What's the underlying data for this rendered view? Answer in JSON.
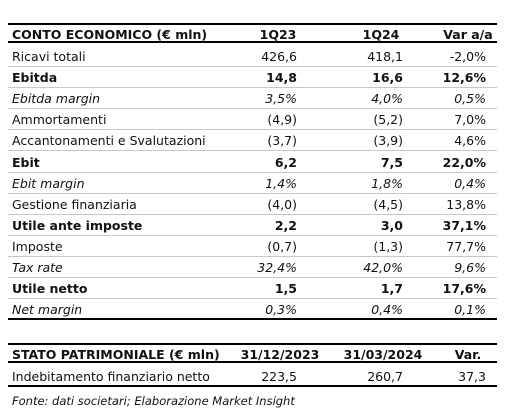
{
  "income_statement": {
    "header": [
      "CONTO ECONOMICO (€ mln)",
      "1Q23",
      "1Q24",
      "Var a/a"
    ],
    "rows": [
      [
        "Ricavi totali",
        "426,6",
        "418,1",
        "-2,0%"
      ],
      [
        "Ebitda",
        "14,8",
        "16,6",
        "12,6%"
      ],
      [
        "Ebitda margin",
        "3,5%",
        "4,0%",
        "0,5%"
      ],
      [
        "Ammortamenti",
        "(4,9)",
        "(5,2)",
        "7,0%"
      ],
      [
        "Accantonamenti e Svalutazioni",
        "(3,7)",
        "(3,9)",
        "4,6%"
      ],
      [
        "Ebit",
        "6,2",
        "7,5",
        "22,0%"
      ],
      [
        "Ebit margin",
        "1,4%",
        "1,8%",
        "0,4%"
      ],
      [
        "Gestione finanziaria",
        "(4,0)",
        "(4,5)",
        "13,8%"
      ],
      [
        "Utile ante imposte",
        "2,2",
        "3,0",
        "37,1%"
      ],
      [
        "Imposte",
        "(0,7)",
        "(1,3)",
        "77,7%"
      ],
      [
        "Tax rate",
        "32,4%",
        "42,0%",
        "9,6%"
      ],
      [
        "Utile netto",
        "1,5",
        "1,7",
        "17,6%"
      ],
      [
        "Net margin",
        "0,3%",
        "0,4%",
        "0,1%"
      ]
    ]
  },
  "balance_sheet": {
    "header": [
      "STATO PATRIMONIALE (€ mln)",
      "31/12/2023",
      "31/03/2024",
      "Var."
    ],
    "rows": [
      [
        "Indebitamento finanziario netto",
        "223,5",
        "260,7",
        "37,3"
      ]
    ]
  },
  "footnote": "Fonte: dati societari; Elaborazione Market Insight"
}
